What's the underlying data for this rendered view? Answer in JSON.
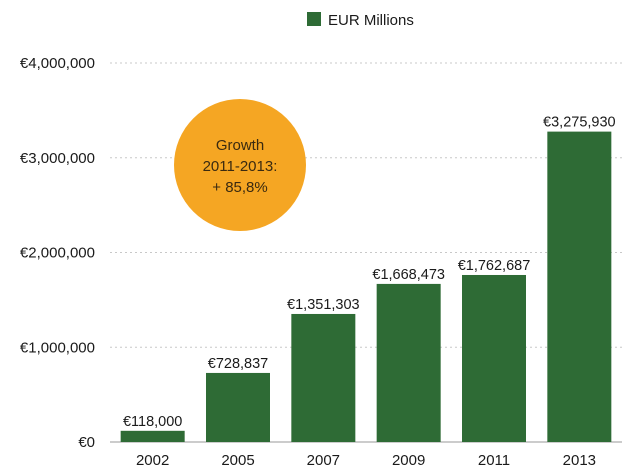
{
  "chart_data": {
    "type": "bar",
    "categories": [
      "2002",
      "2005",
      "2007",
      "2009",
      "2011",
      "2013"
    ],
    "series": [
      {
        "name": "EUR Millions",
        "values": [
          118000,
          728837,
          1351303,
          1668473,
          1762687,
          3275930
        ],
        "labels": [
          "€118,000",
          "€728,837",
          "€1,351,303",
          "€1,668,473",
          "€1,762,687",
          "€3,275,930"
        ]
      }
    ],
    "ylim": [
      0,
      4000000
    ],
    "yticks": [
      0,
      1000000,
      2000000,
      3000000,
      4000000
    ],
    "ytick_labels": [
      "€0",
      "€1,000,000",
      "€2,000,000",
      "€3,000,000",
      "€4,000,000"
    ],
    "grid": true,
    "legend_position": "top",
    "callout": {
      "lines": [
        "Growth",
        "2011-2013:",
        "+ 85,8%"
      ]
    },
    "colors": {
      "bar": "#2e6b35",
      "legend_swatch": "#2e6b35",
      "callout": "#f5a623"
    }
  }
}
